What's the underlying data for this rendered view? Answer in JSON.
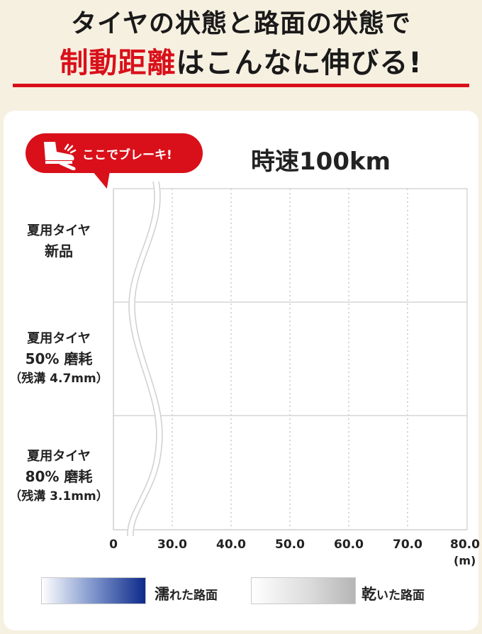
{
  "heading": {
    "line1": "タイヤの状態と路面の状態で",
    "line2_highlight": "制動距離",
    "line2_rest": "はこんなに伸びる!"
  },
  "callout": {
    "text": "ここでブレーキ!",
    "icon": "brake-pedal-foot-icon",
    "color": "#d9101a"
  },
  "speed_label": "時速100km",
  "rows": [
    {
      "line1": "夏用タイヤ",
      "line2": "新品",
      "line3": ""
    },
    {
      "line1": "夏用タイヤ",
      "line2": "50% 磨耗",
      "line3": "（残溝 4.7mm）"
    },
    {
      "line1": "夏用タイヤ",
      "line2": "80% 磨耗",
      "line3": "（残溝 3.1mm）"
    }
  ],
  "legend": {
    "wet": {
      "big": "濡",
      "rest": "れた路面",
      "color": "#0d2a8a"
    },
    "dry": {
      "big": "乾",
      "rest": "いた路面",
      "color": "#b5b5b5"
    }
  },
  "chart_data": {
    "type": "bar",
    "orientation": "horizontal",
    "categories": [
      "夏用タイヤ 新品",
      "夏用タイヤ 50% 磨耗（残溝 4.7mm）",
      "夏用タイヤ 80% 磨耗（残溝 3.1mm）"
    ],
    "series": [],
    "x_ticks": [
      "0",
      "30.0",
      "40.0",
      "50.0",
      "60.0",
      "70.0",
      "80.0"
    ],
    "x_unit": "(m)",
    "axis_break": true,
    "grid": true
  }
}
